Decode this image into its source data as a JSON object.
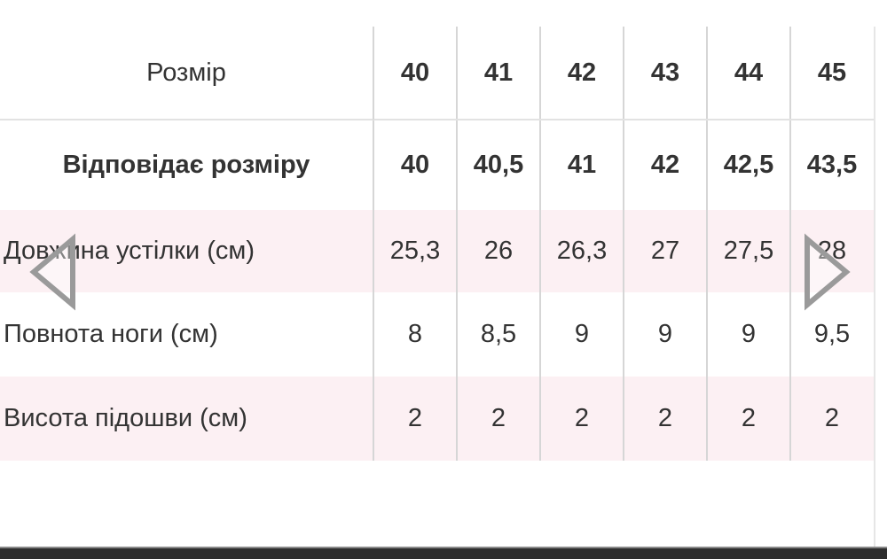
{
  "table": {
    "header": {
      "label": "Розмір",
      "values": [
        "40",
        "41",
        "42",
        "43",
        "44",
        "45"
      ]
    },
    "rows": [
      {
        "label": "Відповідає розміру",
        "values": [
          "40",
          "40,5",
          "41",
          "42",
          "42,5",
          "43,5"
        ]
      },
      {
        "label": "Довжина устілки (см)",
        "values": [
          "25,3",
          "26",
          "26,3",
          "27",
          "27,5",
          "28"
        ]
      },
      {
        "label": "Повнота ноги (см)",
        "values": [
          "8",
          "8,5",
          "9",
          "9",
          "9",
          "9,5"
        ]
      },
      {
        "label": "Висота підошви (см)",
        "values": [
          "2",
          "2",
          "2",
          "2",
          "2",
          "2"
        ]
      }
    ]
  },
  "navigation": {
    "prev_icon": "triangle-left-icon",
    "next_icon": "triangle-right-icon"
  },
  "colors": {
    "stripe": "#fcf0f3",
    "arrow": "#9a9a9a"
  }
}
